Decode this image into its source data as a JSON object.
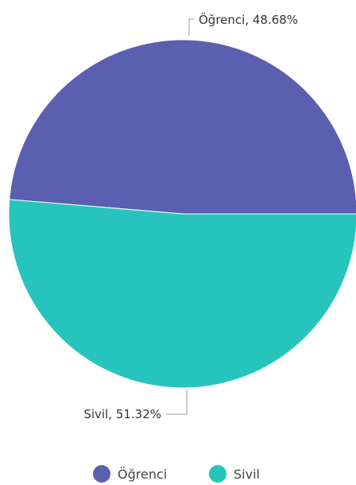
{
  "chart_data": {
    "type": "pie",
    "title": "",
    "slices": [
      {
        "name": "Öğrenci",
        "value": 48.68,
        "label": "Öğrenci, 48.68%",
        "color": "#5b5fb0"
      },
      {
        "name": "Sivil",
        "value": 51.32,
        "label": "Sivil, 51.32%",
        "color": "#27c4bd"
      }
    ],
    "legend": {
      "position": "bottom",
      "items": [
        "Öğrenci",
        "Sivil"
      ]
    }
  }
}
